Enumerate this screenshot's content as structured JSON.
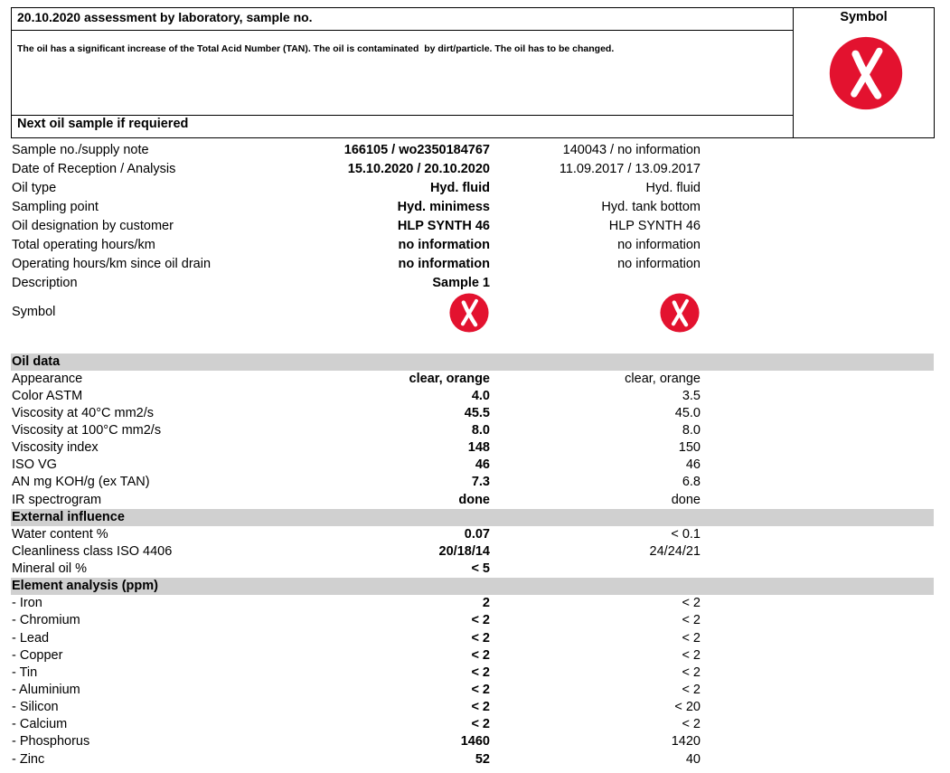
{
  "header": {
    "title": "20.10.2020 assessment by laboratory, sample no.",
    "symbol_label": "Symbol",
    "comment": "The oil has a significant increase of the Total Acid Number (TAN). The oil is contaminated  by dirt/particle. The oil has to be changed.",
    "next_sample": "Next oil sample if requiered"
  },
  "info": {
    "rows": [
      {
        "label": "Sample no./supply note",
        "sample1": "166105 / wo2350184767",
        "sample2": "140043 / no information"
      },
      {
        "label": "Date of Reception / Analysis",
        "sample1": "15.10.2020 / 20.10.2020",
        "sample2": "11.09.2017 / 13.09.2017"
      },
      {
        "label": "Oil type",
        "sample1": "Hyd. fluid",
        "sample2": "Hyd. fluid"
      },
      {
        "label": "Sampling point",
        "sample1": "Hyd. minimess",
        "sample2": "Hyd. tank bottom"
      },
      {
        "label": "Oil designation by customer",
        "sample1": "HLP SYNTH 46",
        "sample2": "HLP SYNTH 46"
      },
      {
        "label": "Total operating hours/km",
        "sample1": "no information",
        "sample2": "no information"
      },
      {
        "label": "Operating hours/km since oil drain",
        "sample1": "no information",
        "sample2": "no information"
      },
      {
        "label": "Description",
        "sample1": "Sample 1"
      }
    ],
    "symbol_label": "Symbol"
  },
  "sections": [
    {
      "title": "Oil data",
      "rows": [
        {
          "label": "Appearance",
          "sample1": "clear, orange",
          "sample2": "clear, orange"
        },
        {
          "label": "Color ASTM",
          "sample1": "4.0",
          "sample2": "3.5"
        },
        {
          "label": "Viscosity at 40°C mm2/s",
          "sample1": "45.5",
          "sample2": "45.0"
        },
        {
          "label": "Viscosity at 100°C mm2/s",
          "sample1": "8.0",
          "sample2": "8.0"
        },
        {
          "label": "Viscosity index",
          "sample1": "148",
          "sample2": "150"
        },
        {
          "label": "ISO VG",
          "sample1": "46",
          "sample2": "46"
        },
        {
          "label": "AN mg KOH/g (ex TAN)",
          "sample1": "7.3",
          "sample2": "6.8"
        },
        {
          "label": "IR spectrogram",
          "sample1": "done",
          "sample2": "done"
        }
      ]
    },
    {
      "title": "External influence",
      "rows": [
        {
          "label": "Water content %",
          "sample1": "0.07",
          "sample2": "< 0.1"
        },
        {
          "label": "Cleanliness class ISO 4406",
          "sample1": "20/18/14",
          "sample2": "24/24/21"
        },
        {
          "label": "Mineral oil %",
          "sample1": "< 5"
        }
      ]
    },
    {
      "title": "Element analysis (ppm)",
      "rows": [
        {
          "label": "- Iron",
          "sample1": "2",
          "sample2": "< 2"
        },
        {
          "label": "- Chromium",
          "sample1": "< 2",
          "sample2": "< 2"
        },
        {
          "label": "- Lead",
          "sample1": "< 2",
          "sample2": "< 2"
        },
        {
          "label": "- Copper",
          "sample1": "< 2",
          "sample2": "< 2"
        },
        {
          "label": "- Tin",
          "sample1": "< 2",
          "sample2": "< 2"
        },
        {
          "label": "- Aluminium",
          "sample1": "< 2",
          "sample2": "< 2"
        },
        {
          "label": "- Silicon",
          "sample1": "< 2",
          "sample2": "< 20"
        },
        {
          "label": "- Calcium",
          "sample1": "< 2",
          "sample2": "< 2"
        },
        {
          "label": "- Phosphorus",
          "sample1": "1460",
          "sample2": "1420"
        },
        {
          "label": "- Zinc",
          "sample1": "52",
          "sample2": "40"
        }
      ]
    }
  ]
}
